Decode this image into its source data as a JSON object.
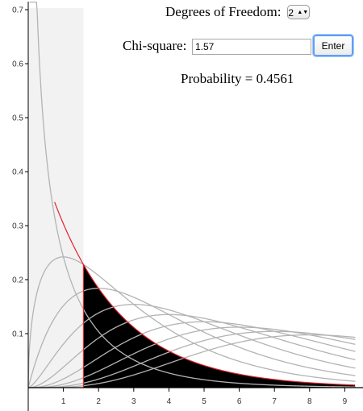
{
  "controls": {
    "dof_label": "Degrees of Freedom:",
    "dof_value": "2",
    "dof_arrows": "▲▼",
    "chi_label": "Chi-square:",
    "chi_value": "1.57",
    "enter_label": "Enter",
    "probability_text": "Probability = 0.4561"
  },
  "colors": {
    "selected_curve": "#e0232b",
    "other_curves": "#b3b3b3",
    "left_shade": "#f2f2f2",
    "tail_fill": "#000000",
    "axis": "#000000"
  },
  "chart_data": {
    "type": "line",
    "distribution": "chi-square",
    "selected_df": 2,
    "chi_square": 1.57,
    "probability": 0.4561,
    "shaded_region": "right tail from chi-square value",
    "series_df": [
      1,
      2,
      3,
      4,
      5,
      6,
      7,
      8,
      9,
      10
    ],
    "xlim": [
      0,
      9.3
    ],
    "ylim": [
      0,
      0.7
    ],
    "x_ticks": [
      "1",
      "2",
      "3",
      "4",
      "5",
      "6",
      "7",
      "8",
      "9"
    ],
    "y_ticks": [
      "0.1",
      "0.2",
      "0.3",
      "0.4",
      "0.5",
      "0.6",
      "0.7"
    ]
  }
}
